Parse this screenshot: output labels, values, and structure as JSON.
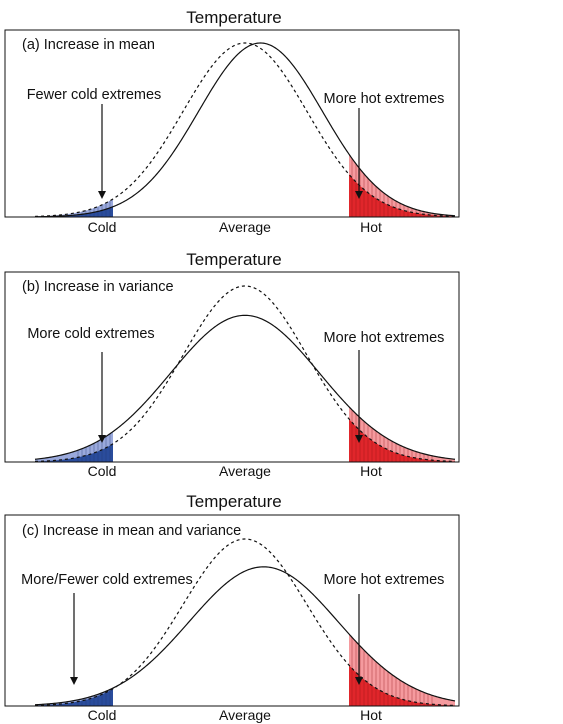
{
  "colors": {
    "cold_dark": "#2a4c9c",
    "cold_light": "#9aa9dc",
    "hot_dark": "#e0262b",
    "hot_light": "#f59a9e",
    "curve": "#111111"
  },
  "panels": [
    {
      "title": "Temperature",
      "label": "(a) Increase in mean",
      "left_annotation": "Fewer cold extremes",
      "right_annotation": "More hot extremes",
      "x_labels": {
        "cold": "Cold",
        "average": "Average",
        "hot": "Hot"
      },
      "reference_curve": {
        "mean": 0,
        "sd": 1
      },
      "shifted_curve": {
        "mean": 0.25,
        "sd": 1
      }
    },
    {
      "title": "Temperature",
      "label": "(b) Increase in variance",
      "left_annotation": "More cold extremes",
      "right_annotation": "More hot extremes",
      "x_labels": {
        "cold": "Cold",
        "average": "Average",
        "hot": "Hot"
      },
      "reference_curve": {
        "mean": 0,
        "sd": 1
      },
      "shifted_curve": {
        "mean": 0,
        "sd": 1.2
      }
    },
    {
      "title": "Temperature",
      "label": "(c) Increase in mean and variance",
      "left_annotation": "More/Fewer cold extremes",
      "right_annotation": "More hot extremes",
      "x_labels": {
        "cold": "Cold",
        "average": "Average",
        "hot": "Hot"
      },
      "reference_curve": {
        "mean": 0,
        "sd": 1
      },
      "shifted_curve": {
        "mean": 0.3,
        "sd": 1.2
      }
    }
  ]
}
